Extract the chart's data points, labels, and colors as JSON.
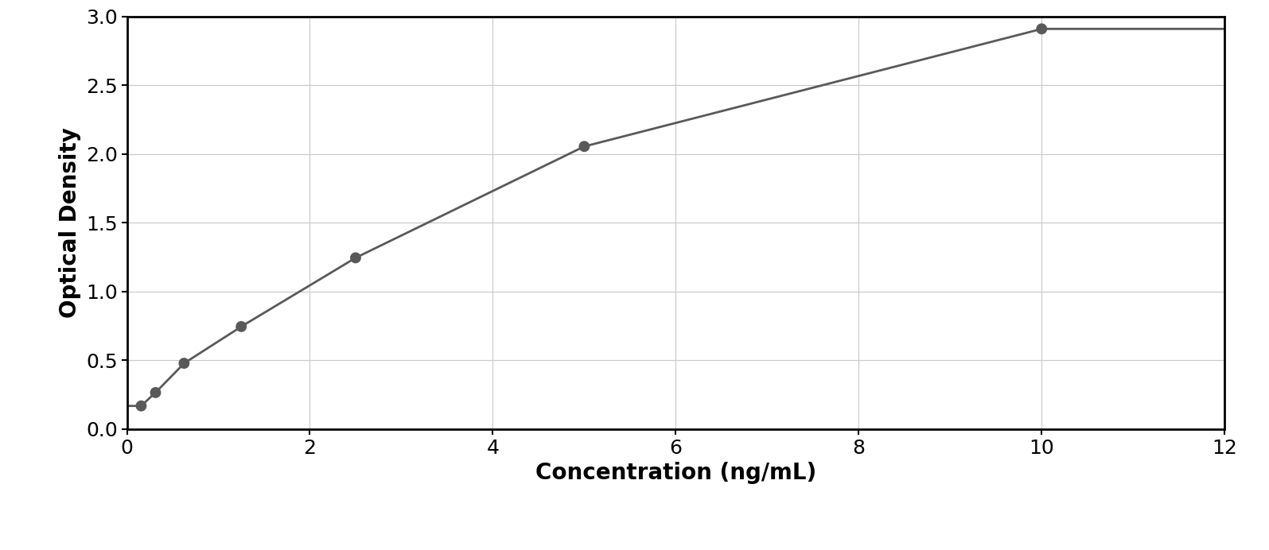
{
  "x_data": [
    0.156,
    0.313,
    0.625,
    1.25,
    2.5,
    5.0,
    10.0
  ],
  "y_data": [
    0.168,
    0.265,
    0.478,
    0.745,
    1.245,
    2.055,
    2.91
  ],
  "xlabel": "Concentration (ng/mL)",
  "ylabel": "Optical Density",
  "xlim": [
    0,
    12
  ],
  "ylim": [
    0,
    3.0
  ],
  "xticks": [
    0,
    2,
    4,
    6,
    8,
    10,
    12
  ],
  "yticks": [
    0,
    0.5,
    1.0,
    1.5,
    2.0,
    2.5,
    3.0
  ],
  "marker_color": "#595959",
  "line_color": "#595959",
  "marker_size": 10,
  "line_width": 2.0,
  "background_color": "#ffffff",
  "outer_background": "#ffffff",
  "grid_color": "#c8c8c8",
  "xlabel_fontsize": 20,
  "ylabel_fontsize": 20,
  "tick_fontsize": 18,
  "xlabel_fontweight": "bold",
  "ylabel_fontweight": "bold",
  "spine_color": "#000000",
  "spine_linewidth": 2.0
}
